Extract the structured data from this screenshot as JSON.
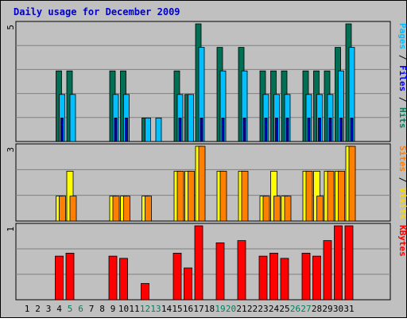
{
  "chart_data": {
    "title": "Daily usage for December 2009",
    "type": "bar",
    "categories": [
      "1",
      "2",
      "3",
      "4",
      "5",
      "6",
      "7",
      "8",
      "9",
      "10",
      "11",
      "12",
      "13",
      "14",
      "15",
      "16",
      "17",
      "18",
      "19",
      "20",
      "21",
      "22",
      "23",
      "24",
      "25",
      "26",
      "27",
      "28",
      "29",
      "30",
      "31"
    ],
    "weekend_days": [
      5,
      6,
      12,
      13,
      19,
      20,
      26,
      27
    ],
    "panels": [
      {
        "id": "hits",
        "y_max_label": "5",
        "ylim": [
          0,
          5
        ],
        "side_labels": [
          {
            "text": "Pages",
            "color": "#00c0ff"
          },
          {
            "text": " / ",
            "color": "#000000"
          },
          {
            "text": "Files",
            "color": "#0000ff"
          },
          {
            "text": " / ",
            "color": "#000000"
          },
          {
            "text": "Hits",
            "color": "#00805c"
          }
        ],
        "series": [
          {
            "name": "Hits",
            "color": "#006f53",
            "values": [
              0,
              0,
              0,
              3,
              3,
              0,
              0,
              0,
              3,
              3,
              0,
              1,
              0,
              0,
              3,
              2,
              5,
              0,
              4,
              0,
              4,
              0,
              3,
              3,
              3,
              0,
              3,
              3,
              3,
              4,
              5
            ]
          },
          {
            "name": "Files",
            "color": "#00c0ff",
            "values": [
              0,
              0,
              0,
              2,
              2,
              0,
              0,
              0,
              2,
              2,
              0,
              1,
              1,
              0,
              2,
              2,
              4,
              0,
              3,
              0,
              3,
              0,
              2,
              2,
              2,
              0,
              2,
              2,
              2,
              3,
              4
            ]
          },
          {
            "name": "Pages",
            "color": "#0000c0",
            "values": [
              0,
              0,
              0,
              1,
              0,
              0,
              0,
              0,
              1,
              1,
              0,
              0,
              0,
              0,
              1,
              0,
              1,
              0,
              1,
              0,
              1,
              0,
              1,
              1,
              1,
              0,
              1,
              1,
              1,
              1,
              1
            ]
          }
        ]
      },
      {
        "id": "visits",
        "y_max_label": "3",
        "ylim": [
          0,
          3
        ],
        "side_labels": [
          {
            "text": "Sites",
            "color": "#ff8000"
          },
          {
            "text": " / ",
            "color": "#000000"
          },
          {
            "text": "Visits",
            "color": "#ffd800"
          }
        ],
        "series": [
          {
            "name": "Visits",
            "color": "#ffff00",
            "values": [
              0,
              0,
              0,
              1,
              2,
              0,
              0,
              0,
              1,
              1,
              0,
              1,
              0,
              0,
              2,
              2,
              3,
              0,
              2,
              0,
              2,
              0,
              1,
              2,
              1,
              0,
              2,
              2,
              2,
              2,
              3
            ]
          },
          {
            "name": "Sites",
            "color": "#ff8000",
            "values": [
              0,
              0,
              0,
              1,
              1,
              0,
              0,
              0,
              1,
              1,
              0,
              1,
              0,
              0,
              2,
              2,
              3,
              0,
              2,
              0,
              2,
              0,
              1,
              1,
              1,
              0,
              2,
              1,
              2,
              2,
              3
            ]
          }
        ]
      },
      {
        "id": "kbytes",
        "y_max_label": "1",
        "ylim": [
          0,
          1
        ],
        "side_labels": [
          {
            "text": "KBytes",
            "color": "#ff0000"
          }
        ],
        "series": [
          {
            "name": "KBytes",
            "color": "#ff0000",
            "values": [
              0,
              0,
              0,
              0.59,
              0.63,
              0,
              0,
              0,
              0.59,
              0.56,
              0,
              0.22,
              0,
              0,
              0.63,
              0.43,
              1.0,
              0,
              0.77,
              0,
              0.8,
              0,
              0.59,
              0.63,
              0.56,
              0,
              0.63,
              0.59,
              0.8,
              1.0,
              1.0
            ]
          }
        ]
      }
    ]
  }
}
